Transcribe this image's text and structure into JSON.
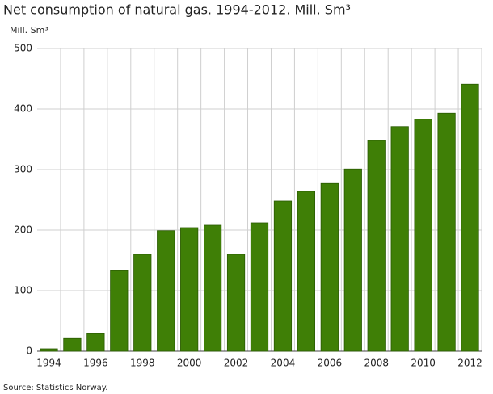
{
  "chart_data": {
    "type": "bar",
    "title": "Net consumption of natural gas. 1994-2012. Mill. Sm³",
    "y_label": "Mill. Sm³",
    "source": "Source: Statistics Norway.",
    "categories": [
      "1994",
      null,
      "1996",
      null,
      "1998",
      null,
      "2000",
      null,
      "2002",
      null,
      "2004",
      null,
      "2006",
      null,
      "2008",
      null,
      "2010",
      null,
      "2012"
    ],
    "values": [
      4,
      21,
      29,
      133,
      160,
      199,
      204,
      208,
      160,
      212,
      248,
      264,
      277,
      301,
      348,
      371,
      383,
      393,
      441
    ],
    "color": "#3f7f06",
    "ylim": [
      0,
      500
    ],
    "yticks": [
      0,
      100,
      200,
      300,
      400,
      500
    ],
    "grid": true
  }
}
